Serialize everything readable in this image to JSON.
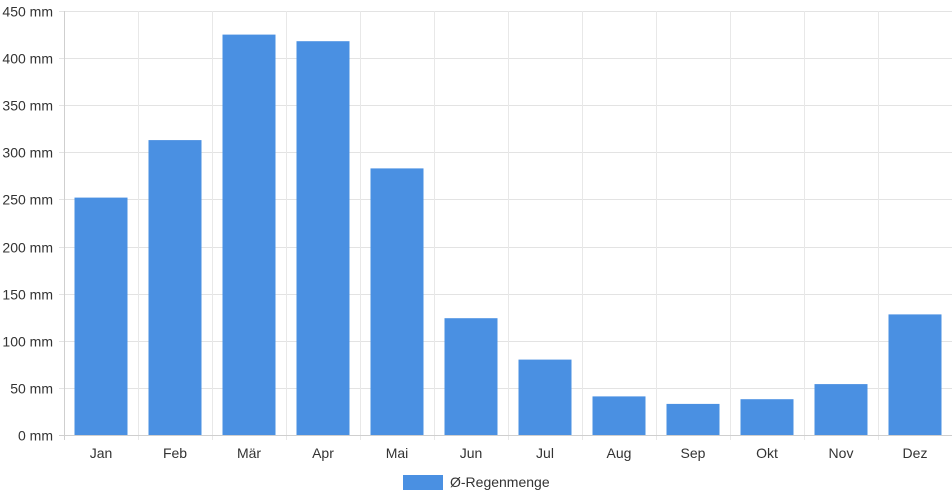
{
  "chart_data": {
    "type": "bar",
    "categories": [
      "Jan",
      "Feb",
      "Mär",
      "Apr",
      "Mai",
      "Jun",
      "Jul",
      "Aug",
      "Sep",
      "Okt",
      "Nov",
      "Dez"
    ],
    "series": [
      {
        "name": "Ø-Regenmenge",
        "values": [
          252,
          313,
          425,
          418,
          283,
          124,
          80,
          41,
          33,
          38,
          54,
          128
        ],
        "color": "#4a90e2"
      }
    ],
    "y_tick_labels": [
      "0 mm",
      "50 mm",
      "100 mm",
      "150 mm",
      "200 mm",
      "250 mm",
      "300 mm",
      "350 mm",
      "400 mm",
      "450 mm"
    ],
    "ylim": [
      0,
      450
    ],
    "y_step": 50,
    "grid": true,
    "legend": "bottom-center",
    "title": "",
    "xlabel": "",
    "ylabel": ""
  }
}
